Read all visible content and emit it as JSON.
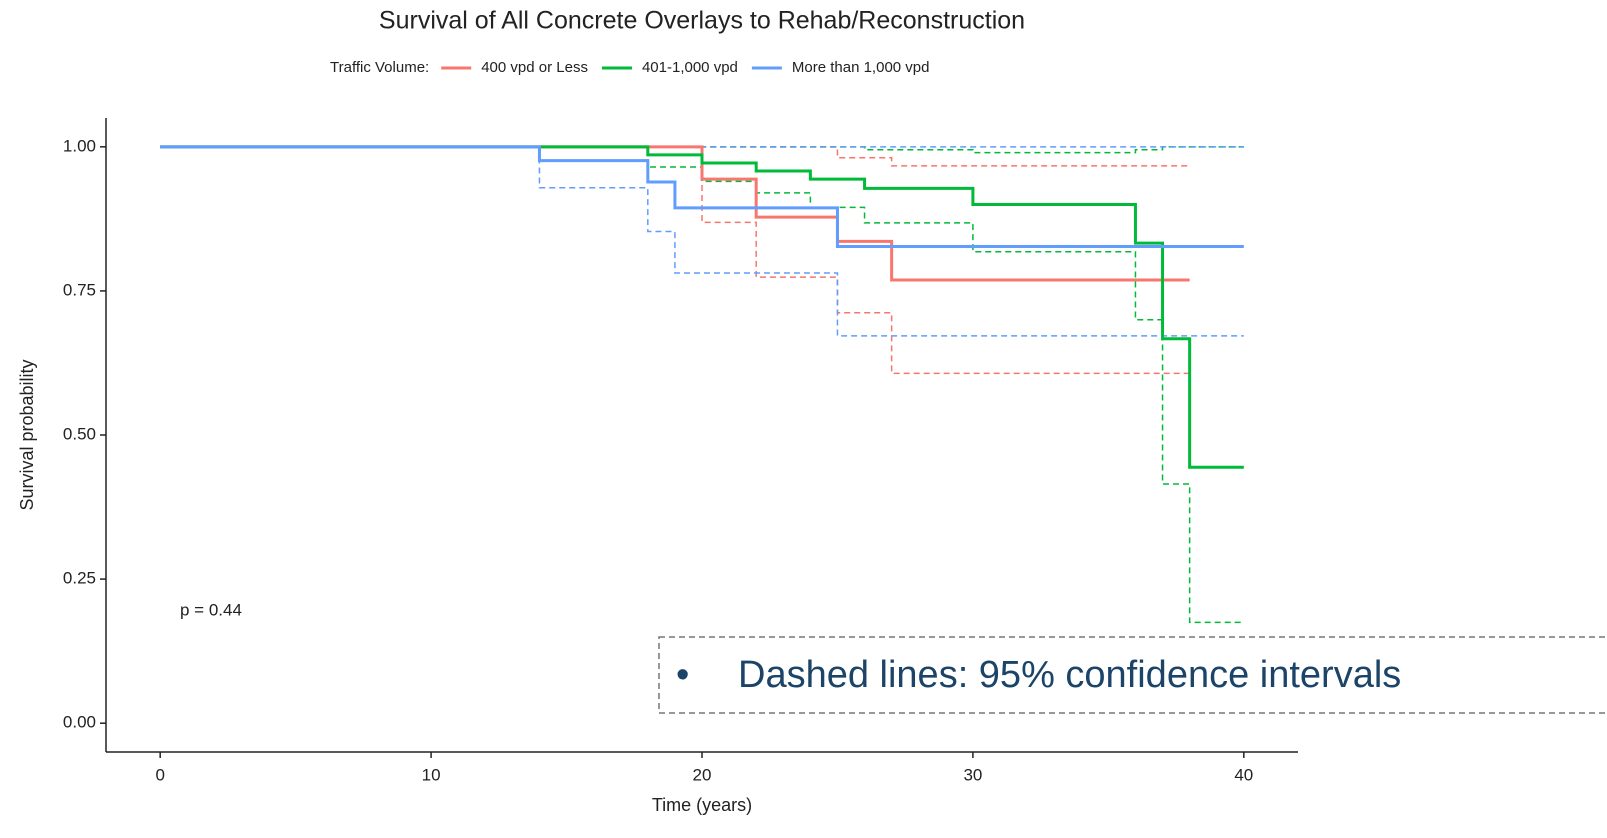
{
  "chart_data": {
    "type": "step",
    "title": "Survival of All Concrete Overlays to Rehab/Reconstruction",
    "legend_title": "Traffic Volume:",
    "x_label": "Time (years)",
    "y_label": "Survival probability",
    "annotation": "p = 0.44",
    "note": "Dashed lines: 95% confidence intervals",
    "xlim": [
      -2,
      42
    ],
    "xticks": [
      0,
      10,
      20,
      30,
      40
    ],
    "ylim": [
      -0.05,
      1.05
    ],
    "yticks": [
      {
        "value": 0,
        "label": "0.00"
      },
      {
        "value": 0.25,
        "label": "0.25"
      },
      {
        "value": 0.5,
        "label": "0.50"
      },
      {
        "value": 0.75,
        "label": "0.75"
      },
      {
        "value": 1,
        "label": "1.00"
      }
    ],
    "series": [
      {
        "name": "400 vpd or Less",
        "color": "#F8766D",
        "x": [
          0,
          20,
          22,
          25,
          27,
          38
        ],
        "values": [
          1,
          0.944,
          0.878,
          0.836,
          0.769,
          0.769
        ],
        "upper": [
          1,
          1,
          1,
          0.981,
          0.967,
          0.967
        ],
        "lower": [
          1,
          0.869,
          0.774,
          0.712,
          0.607,
          0.607
        ]
      },
      {
        "name": "401-1,000 vpd",
        "color": "#00BA38",
        "x": [
          0,
          18,
          20,
          22,
          24,
          26,
          30,
          36,
          37,
          38,
          40
        ],
        "values": [
          1,
          0.986,
          0.972,
          0.958,
          0.944,
          0.928,
          0.9,
          0.833,
          0.667,
          0.444,
          0.444
        ],
        "upper": [
          1,
          1,
          1,
          1,
          1,
          0.995,
          0.99,
          0.995,
          1,
          1,
          1
        ],
        "lower": [
          1,
          0.965,
          0.94,
          0.92,
          0.895,
          0.868,
          0.818,
          0.7,
          0.415,
          0.175,
          0.175
        ]
      },
      {
        "name": "More than 1,000 vpd",
        "color": "#619CFF",
        "x": [
          0,
          14,
          18,
          19,
          25,
          40
        ],
        "values": [
          1,
          0.976,
          0.939,
          0.894,
          0.827,
          0.827
        ],
        "upper": [
          1,
          1,
          1,
          1,
          1,
          1
        ],
        "lower": [
          1,
          0.929,
          0.853,
          0.781,
          0.672,
          0.672
        ]
      }
    ]
  }
}
